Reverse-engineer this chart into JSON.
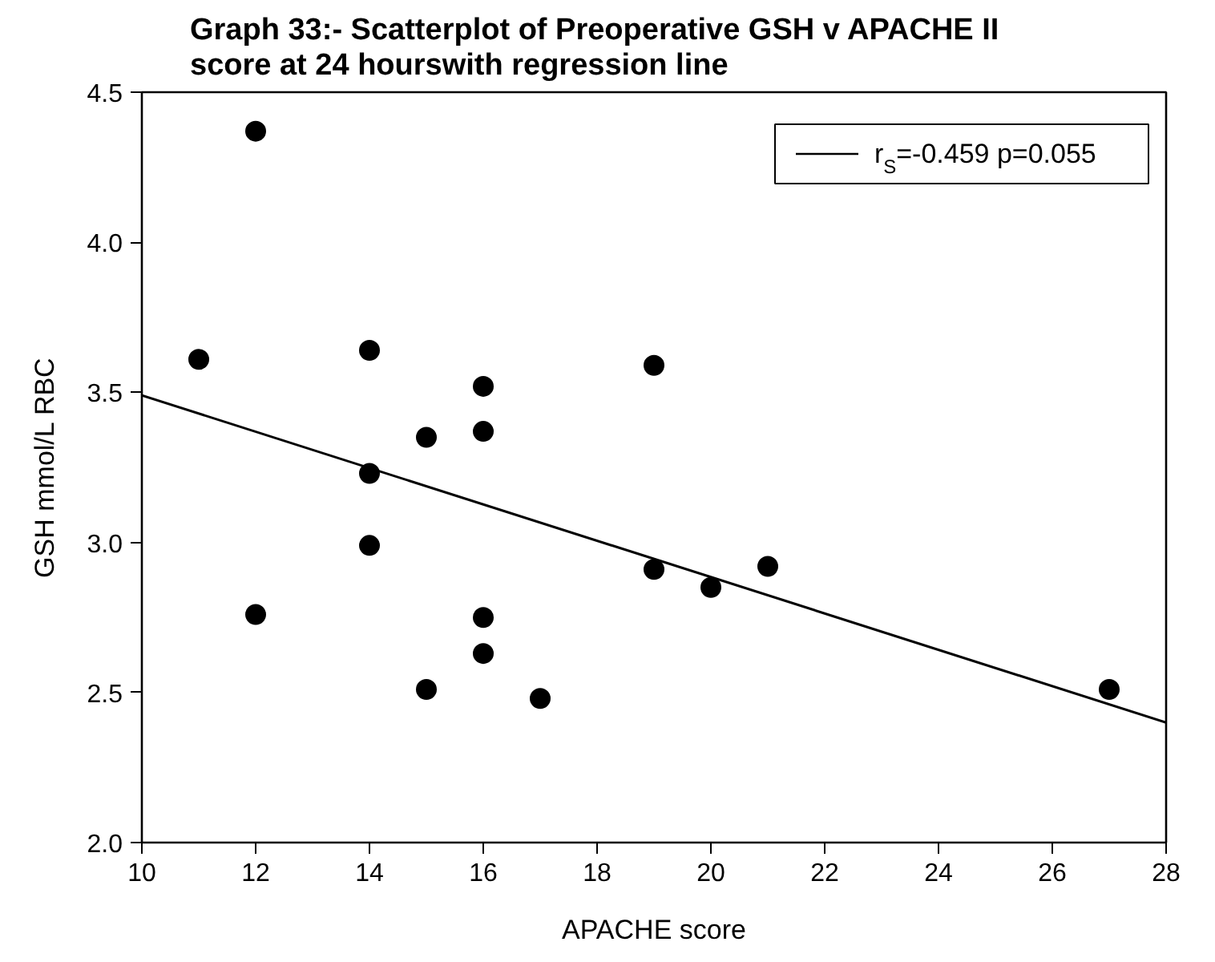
{
  "chart_data": {
    "type": "scatter",
    "title": "Graph 33:- Scatterplot of Preoperative GSH v APACHE II score at 24 hourswith regression line",
    "xlabel": "APACHE score",
    "ylabel": "GSH mmol/L RBC",
    "series": [
      {
        "color": "#000000",
        "marker": "circle",
        "x": [
          11,
          12,
          12,
          14,
          14,
          14,
          15,
          15,
          16,
          16,
          16,
          16,
          17,
          19,
          19,
          20,
          21,
          27
        ],
        "values": [
          3.61,
          4.37,
          2.76,
          3.64,
          3.23,
          2.99,
          3.35,
          2.51,
          3.52,
          3.37,
          2.75,
          2.63,
          2.48,
          3.59,
          2.91,
          2.85,
          2.92,
          2.51
        ]
      },
      {
        "type": "line",
        "name": "r$_{S}$=-0.459 p=0.055",
        "color": "#000000",
        "line_style": "solid",
        "marker": "none",
        "x": [
          10,
          28
        ],
        "values": [
          3.49,
          2.4
        ]
      }
    ],
    "xlim": [
      10,
      28
    ],
    "xticks": [
      10,
      12,
      14,
      16,
      18,
      20,
      22,
      24,
      26,
      28
    ],
    "ylim": [
      2.0,
      4.5
    ],
    "yticks": [
      {
        "value": 2.0,
        "label": "2.0"
      },
      {
        "value": 2.5,
        "label": "2.5"
      },
      {
        "value": 3.0,
        "label": "3.0"
      },
      {
        "value": 3.5,
        "label": "3.5"
      },
      {
        "value": 4.0,
        "label": "4.0"
      },
      {
        "value": 4.5,
        "label": "4.5"
      }
    ],
    "grid": false,
    "legend": "top right"
  }
}
